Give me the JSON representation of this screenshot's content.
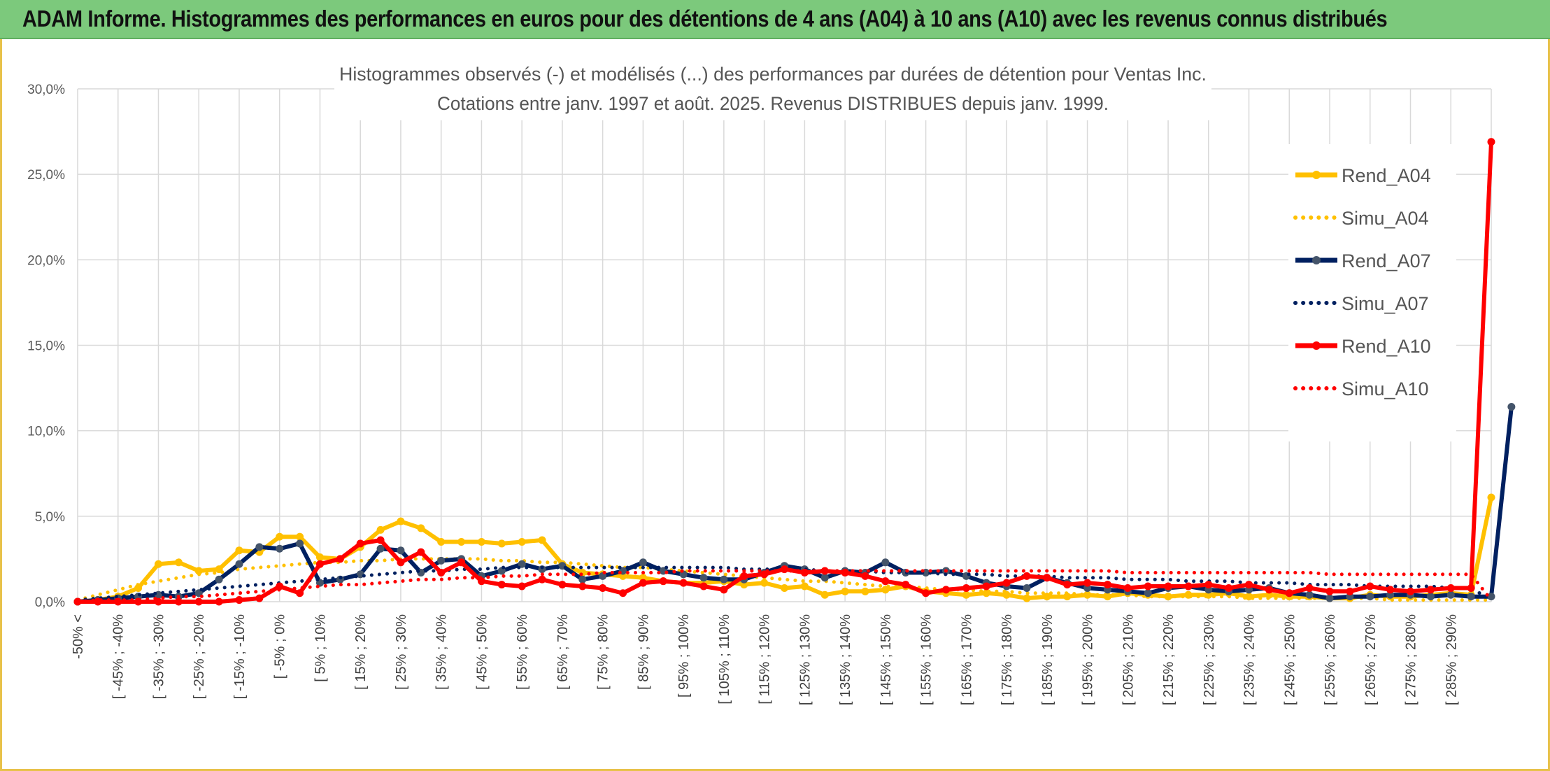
{
  "banner": {
    "title": "ADAM Informe. Histogrammes des performances en euros pour des détentions de 4 ans (A04) à 10 ans (A10) avec les revenus connus distribués"
  },
  "colors": {
    "banner_bg": "#7cc97c",
    "a04": "#ffc000",
    "a07": "#002060",
    "a07_marker": "#44546a",
    "a10": "#ff0000",
    "grid": "#d9d9d9"
  },
  "chart_data": {
    "type": "line",
    "title": [
      "Histogrammes observés (-) et modélisés (...) des performances par durées de détention pour Ventas Inc.",
      "Cotations entre janv. 1997 et août. 2025. Revenus DISTRIBUES depuis janv. 1999."
    ],
    "ylim": [
      0,
      30
    ],
    "y_ticks": [
      "0,0%",
      "5,0%",
      "10,0%",
      "15,0%",
      "20,0%",
      "25,0%",
      "30,0%"
    ],
    "grid": true,
    "legend_position": "right",
    "x_labels": [
      "-50% <",
      "[ -45% ; -40%",
      "[ -35% ; -30%",
      "[ -25% ; -20%",
      "[ -15% ; -10%",
      "[ -5% ; 0%",
      "[ 5% ; 10%",
      "[ 15% ; 20%",
      "[ 25% ; 30%",
      "[ 35% ; 40%",
      "[ 45% ; 50%",
      "[ 55% ; 60%",
      "[ 65% ; 70%",
      "[ 75% ; 80%",
      "[ 85% ; 90%",
      "[ 95% ; 100%",
      "[ 105% ; 110%",
      "[ 115% ; 120%",
      "[ 125% ; 130%",
      "[ 135% ; 140%",
      "[ 145% ; 150%",
      "[ 155% ; 160%",
      "[ 165% ; 170%",
      "[ 175% ; 180%",
      "[ 185% ; 190%",
      "[ 195% ; 200%",
      "[ 205% ; 210%",
      "[ 215% ; 220%",
      "[ 225% ; 230%",
      "[ 235% ; 240%",
      "[ 245% ; 250%",
      "[ 255% ; 260%",
      "[ 265% ; 270%",
      "[ 275% ; 280%",
      "[ 285% ; 290%"
    ],
    "series": [
      {
        "name": "Rend_A04",
        "style": "solid",
        "color": "#ffc000",
        "values": [
          0.0,
          0.1,
          0.3,
          0.8,
          2.2,
          2.3,
          1.8,
          1.9,
          3.0,
          2.9,
          3.8,
          3.8,
          2.6,
          2.5,
          3.2,
          4.2,
          4.7,
          4.3,
          3.5,
          3.5,
          3.5,
          3.4,
          3.5,
          3.6,
          2.2,
          1.7,
          1.6,
          1.5,
          1.4,
          1.2,
          1.1,
          1.1,
          1.2,
          1.0,
          1.1,
          0.8,
          0.9,
          0.4,
          0.6,
          0.6,
          0.7,
          0.9,
          0.6,
          0.5,
          0.4,
          0.5,
          0.4,
          0.2,
          0.3,
          0.3,
          0.4,
          0.3,
          0.5,
          0.4,
          0.3,
          0.4,
          0.4,
          0.5,
          0.3,
          0.4,
          0.3,
          0.3,
          0.2,
          0.2,
          0.4,
          0.3,
          0.3,
          0.4,
          0.5,
          0.4,
          6.1
        ]
      },
      {
        "name": "Simu_A04",
        "style": "dotted",
        "color": "#ffc000",
        "values": [
          0.1,
          0.4,
          0.7,
          1.0,
          1.2,
          1.4,
          1.6,
          1.7,
          1.9,
          2.0,
          2.1,
          2.2,
          2.3,
          2.3,
          2.4,
          2.4,
          2.5,
          2.5,
          2.5,
          2.5,
          2.5,
          2.4,
          2.4,
          2.3,
          2.3,
          2.2,
          2.1,
          2.0,
          2.0,
          1.9,
          1.8,
          1.7,
          1.6,
          1.5,
          1.4,
          1.3,
          1.2,
          1.2,
          1.1,
          1.0,
          0.9,
          0.9,
          0.8,
          0.7,
          0.7,
          0.6,
          0.6,
          0.5,
          0.5,
          0.5,
          0.4,
          0.4,
          0.4,
          0.3,
          0.3,
          0.3,
          0.3,
          0.3,
          0.2,
          0.2,
          0.2,
          0.2,
          0.2,
          0.2,
          0.2,
          0.1,
          0.1,
          0.1,
          0.1,
          0.1,
          0.1
        ]
      },
      {
        "name": "Rend_A07",
        "style": "solid",
        "color": "#002060",
        "values": [
          0.0,
          0.1,
          0.2,
          0.3,
          0.4,
          0.3,
          0.5,
          1.3,
          2.2,
          3.2,
          3.1,
          3.4,
          1.1,
          1.3,
          1.6,
          3.1,
          3.0,
          1.7,
          2.4,
          2.5,
          1.5,
          1.8,
          2.2,
          1.9,
          2.1,
          1.3,
          1.5,
          1.8,
          2.3,
          1.8,
          1.6,
          1.4,
          1.3,
          1.3,
          1.7,
          2.1,
          1.9,
          1.4,
          1.8,
          1.7,
          2.3,
          1.7,
          1.7,
          1.8,
          1.5,
          1.1,
          0.9,
          0.8,
          1.4,
          1.1,
          0.8,
          0.7,
          0.6,
          0.5,
          0.8,
          0.9,
          0.7,
          0.6,
          0.7,
          0.8,
          0.5,
          0.4,
          0.2,
          0.3,
          0.3,
          0.4,
          0.4,
          0.3,
          0.4,
          0.3,
          0.3,
          11.4
        ]
      },
      {
        "name": "Simu_A07",
        "style": "dotted",
        "color": "#002060",
        "values": [
          0.1,
          0.2,
          0.3,
          0.4,
          0.5,
          0.6,
          0.7,
          0.8,
          0.9,
          1.0,
          1.1,
          1.2,
          1.3,
          1.4,
          1.5,
          1.6,
          1.7,
          1.8,
          1.8,
          1.9,
          1.9,
          2.0,
          2.0,
          2.0,
          2.0,
          2.0,
          2.0,
          2.0,
          2.0,
          2.0,
          2.0,
          2.0,
          2.0,
          1.9,
          1.9,
          1.9,
          1.9,
          1.8,
          1.8,
          1.8,
          1.7,
          1.7,
          1.7,
          1.6,
          1.6,
          1.6,
          1.5,
          1.5,
          1.5,
          1.4,
          1.4,
          1.4,
          1.3,
          1.3,
          1.3,
          1.2,
          1.2,
          1.2,
          1.1,
          1.1,
          1.1,
          1.0,
          1.0,
          1.0,
          0.9,
          0.9,
          0.9,
          0.9,
          0.8,
          0.8,
          0.1
        ]
      },
      {
        "name": "Rend_A10",
        "style": "solid",
        "color": "#ff0000",
        "values": [
          0.0,
          0.0,
          0.0,
          0.0,
          0.0,
          0.0,
          0.0,
          0.0,
          0.1,
          0.2,
          0.9,
          0.5,
          2.2,
          2.5,
          3.4,
          3.6,
          2.3,
          2.9,
          1.7,
          2.3,
          1.2,
          1.0,
          0.9,
          1.3,
          1.0,
          0.9,
          0.8,
          0.5,
          1.1,
          1.2,
          1.1,
          0.9,
          0.7,
          1.5,
          1.6,
          1.9,
          1.7,
          1.8,
          1.7,
          1.5,
          1.2,
          1.0,
          0.5,
          0.7,
          0.8,
          0.9,
          1.1,
          1.5,
          1.4,
          1.0,
          1.1,
          1.0,
          0.8,
          0.9,
          0.9,
          0.9,
          1.0,
          0.8,
          1.0,
          0.7,
          0.5,
          0.8,
          0.6,
          0.6,
          0.9,
          0.7,
          0.6,
          0.7,
          0.8,
          0.8,
          26.9
        ]
      },
      {
        "name": "Simu_A10",
        "style": "dotted",
        "color": "#ff0000",
        "values": [
          0.0,
          0.1,
          0.1,
          0.1,
          0.2,
          0.3,
          0.3,
          0.4,
          0.5,
          0.6,
          0.7,
          0.8,
          0.9,
          1.0,
          1.0,
          1.1,
          1.2,
          1.3,
          1.3,
          1.4,
          1.4,
          1.5,
          1.5,
          1.6,
          1.6,
          1.6,
          1.7,
          1.7,
          1.7,
          1.7,
          1.8,
          1.8,
          1.8,
          1.8,
          1.8,
          1.8,
          1.8,
          1.8,
          1.8,
          1.8,
          1.8,
          1.8,
          1.8,
          1.8,
          1.8,
          1.8,
          1.8,
          1.8,
          1.8,
          1.8,
          1.8,
          1.8,
          1.7,
          1.7,
          1.7,
          1.7,
          1.7,
          1.7,
          1.7,
          1.7,
          1.7,
          1.7,
          1.6,
          1.6,
          1.6,
          1.6,
          1.6,
          1.6,
          1.6,
          1.6,
          0.1
        ]
      }
    ]
  }
}
